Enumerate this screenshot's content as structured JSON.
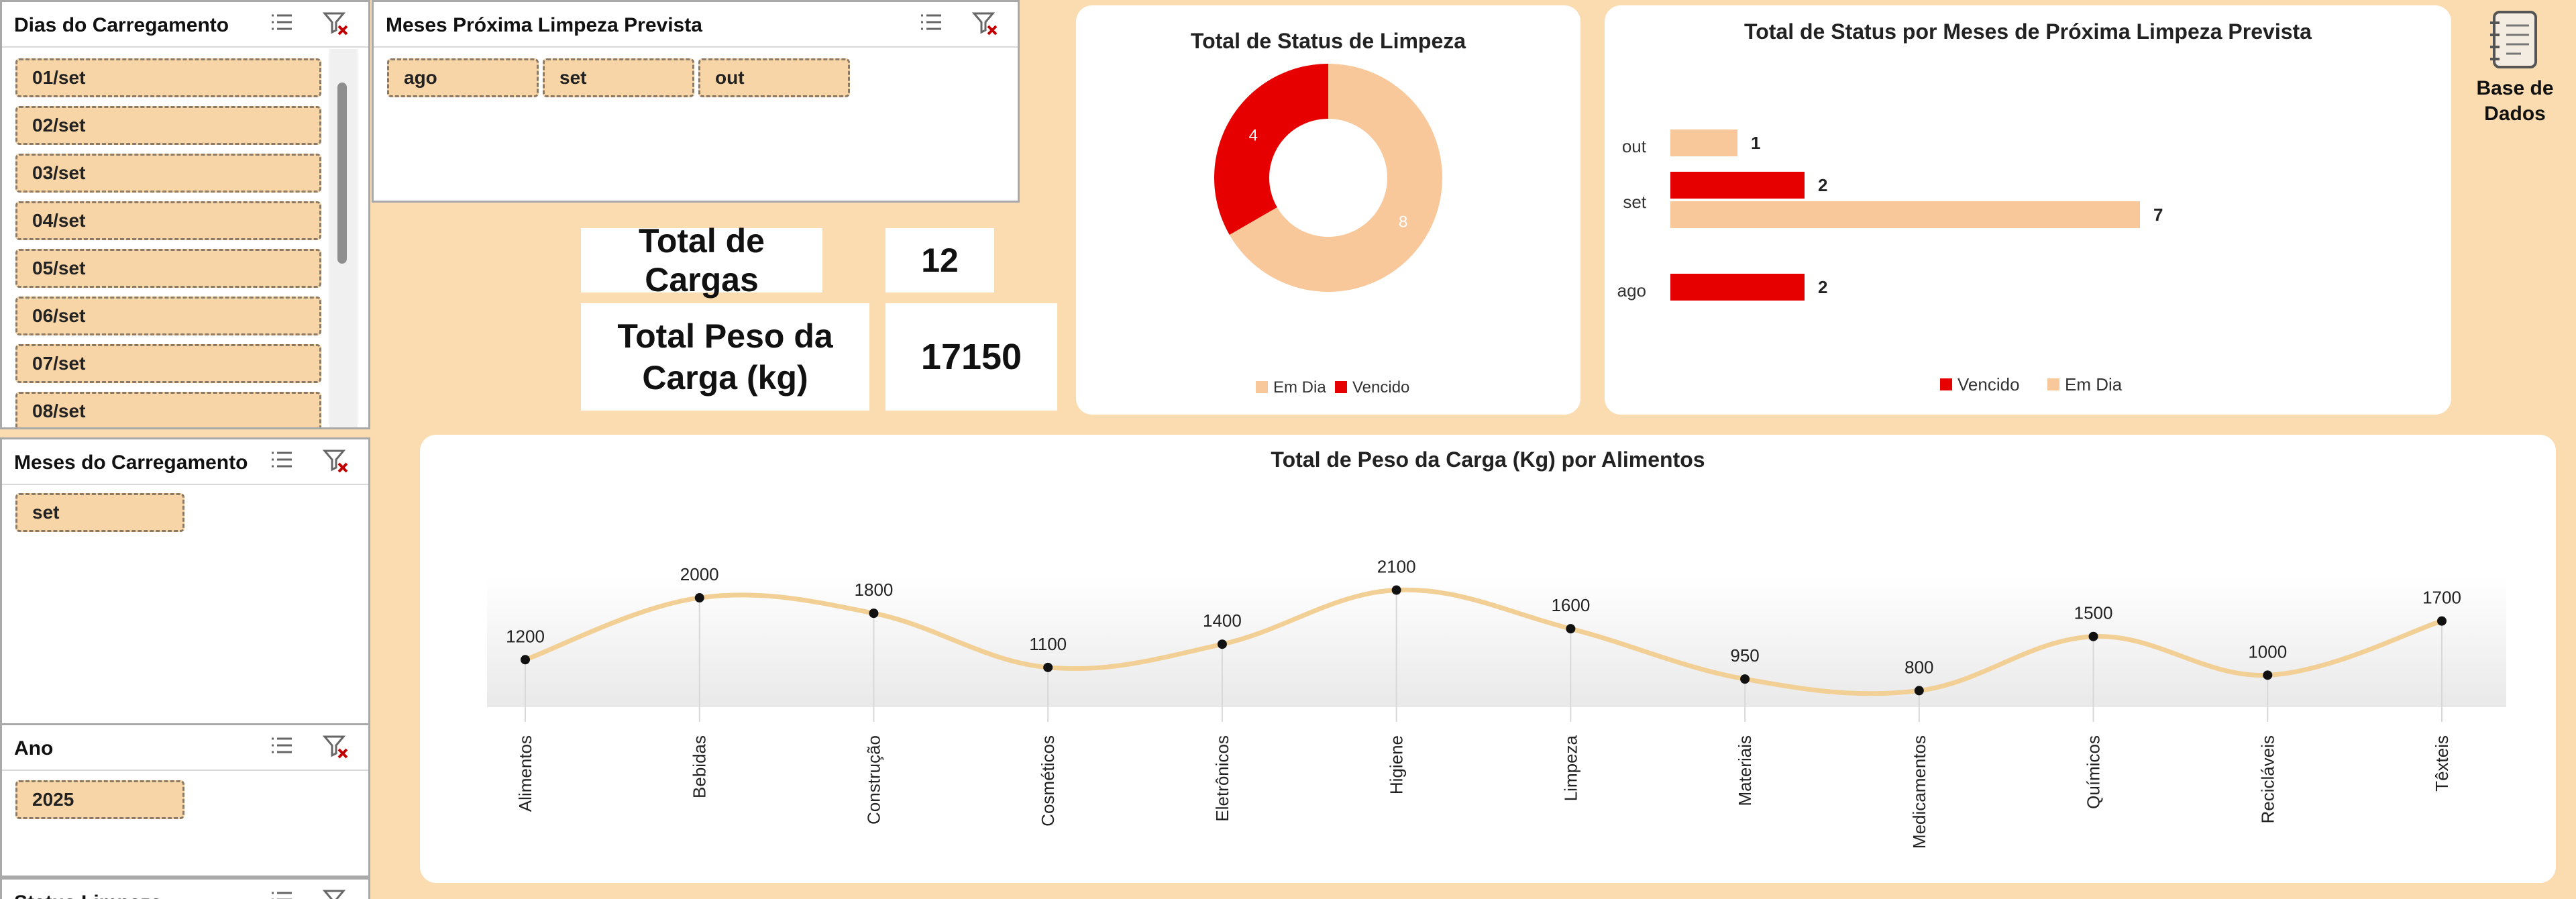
{
  "colors": {
    "background": "#fbdcb0",
    "em_dia": "#f8c79a",
    "vencido": "#e60000",
    "chip_fill": "#f8d5a6",
    "line": "#f1cf95"
  },
  "slicers": {
    "dias": {
      "title": "Dias do Carregamento",
      "items": [
        "01/set",
        "02/set",
        "03/set",
        "04/set",
        "05/set",
        "06/set",
        "07/set",
        "08/set"
      ]
    },
    "meses_limpeza": {
      "title": "Meses Próxima Limpeza Prevista",
      "items": [
        "ago",
        "set",
        "out"
      ]
    },
    "meses_carregamento": {
      "title": "Meses do Carregamento",
      "items": [
        "set"
      ]
    },
    "ano": {
      "title": "Ano",
      "items": [
        "2025"
      ]
    },
    "status": {
      "title": "Status Limpeza"
    }
  },
  "kpis": {
    "total_cargas_label": "Total de Cargas",
    "total_cargas_value": "12",
    "total_peso_label_1": "Total Peso da",
    "total_peso_label_2": "Carga (kg)",
    "total_peso_value": "17150"
  },
  "base_dados": {
    "label_1": "Base de",
    "label_2": "Dados",
    "icon": "notebook-icon"
  },
  "chart_data": [
    {
      "type": "pie",
      "title": "Total de Status de Limpeza",
      "donut": true,
      "categories": [
        "Em Dia",
        "Vencido"
      ],
      "values": [
        8,
        4
      ],
      "colors": [
        "#f8c79a",
        "#e60000"
      ],
      "legend": "bottom"
    },
    {
      "type": "bar",
      "orientation": "horizontal",
      "title": "Total de Status por Meses de Próxima Limpeza Prevista",
      "categories": [
        "ago",
        "set",
        "out"
      ],
      "series": [
        {
          "name": "Vencido",
          "values": [
            2,
            2,
            null
          ],
          "color": "#e60000"
        },
        {
          "name": "Em Dia",
          "values": [
            null,
            7,
            1
          ],
          "color": "#f8c79a"
        }
      ],
      "legend": "bottom",
      "xlim": [
        0,
        10
      ]
    },
    {
      "type": "line",
      "title": "Total de Peso da Carga (Kg) por Alimentos",
      "smooth": true,
      "categories": [
        "Alimentos",
        "Bebidas",
        "Construção",
        "Cosméticos",
        "Eletrônicos",
        "Higiene",
        "Limpeza",
        "Materiais",
        "Medicamentos",
        "Químicos",
        "Recicláveis",
        "Têxteis"
      ],
      "values": [
        1200,
        2000,
        1800,
        1100,
        1400,
        2100,
        1600,
        950,
        800,
        1500,
        1000,
        1700
      ],
      "color": "#f1cf95",
      "ylim": [
        0,
        2300
      ]
    }
  ]
}
